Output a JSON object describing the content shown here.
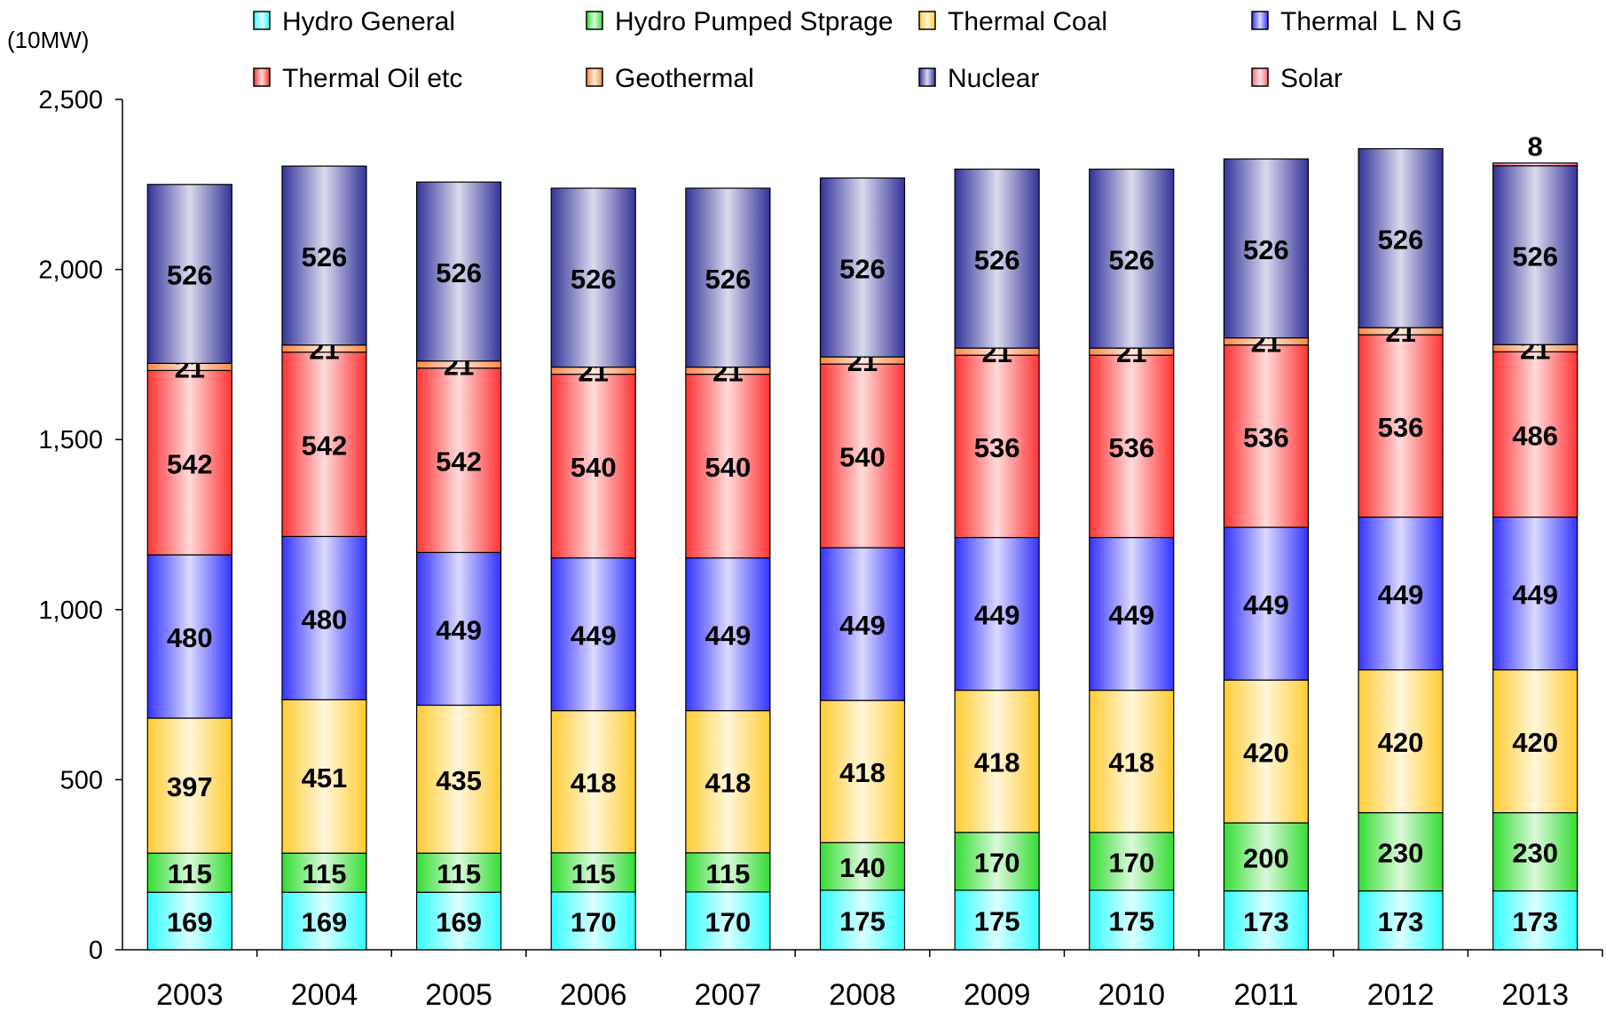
{
  "chart_data": {
    "type": "bar",
    "stacked": true,
    "unit_label": "(10MW)",
    "categories": [
      "2003",
      "2004",
      "2005",
      "2006",
      "2007",
      "2008",
      "2009",
      "2010",
      "2011",
      "2012",
      "2013"
    ],
    "ylim": [
      0,
      2500
    ],
    "yticks": [
      "0",
      "500",
      "1,000",
      "1,500",
      "2,000",
      "2,500"
    ],
    "ytick_values": [
      0,
      500,
      1000,
      1500,
      2000,
      2500
    ],
    "grid": false,
    "legend_position": "top",
    "series": [
      {
        "name": "Hydro General",
        "color": "#33ffff",
        "values": [
          169,
          169,
          169,
          170,
          170,
          175,
          175,
          175,
          173,
          173,
          173
        ],
        "labels": [
          "169",
          "169",
          "169",
          "170",
          "170",
          "175",
          "175",
          "175",
          "173",
          "173",
          "173"
        ]
      },
      {
        "name": "Hydro Pumped Stprage",
        "color": "#33dd33",
        "values": [
          115,
          115,
          115,
          115,
          115,
          140,
          170,
          170,
          200,
          230,
          230
        ],
        "labels": [
          "115",
          "115",
          "115",
          "115",
          "115",
          "140",
          "170",
          "170",
          "200",
          "230",
          "230"
        ]
      },
      {
        "name": "Thermal Coal",
        "color": "#ffcc33",
        "values": [
          397,
          451,
          435,
          418,
          418,
          418,
          418,
          418,
          420,
          420,
          420
        ],
        "labels": [
          "397",
          "451",
          "435",
          "418",
          "418",
          "418",
          "418",
          "418",
          "420",
          "420",
          "420"
        ]
      },
      {
        "name": "Thermal ＬＮＧ",
        "color": "#3333ff",
        "values": [
          480,
          480,
          449,
          449,
          449,
          449,
          449,
          449,
          449,
          449,
          449
        ],
        "labels": [
          "480",
          "480",
          "449",
          "449",
          "449",
          "449",
          "449",
          "449",
          "449",
          "449",
          "449"
        ]
      },
      {
        "name": "Thermal Oil etc",
        "color": "#ff3333",
        "values": [
          542,
          542,
          542,
          540,
          540,
          540,
          536,
          536,
          536,
          536,
          486
        ],
        "labels": [
          "542",
          "542",
          "542",
          "540",
          "540",
          "540",
          "536",
          "536",
          "536",
          "536",
          "486"
        ]
      },
      {
        "name": "Geothermal",
        "color": "#ff8844",
        "values": [
          21,
          21,
          21,
          21,
          21,
          21,
          21,
          21,
          21,
          21,
          21
        ],
        "labels": [
          "21",
          "21",
          "21",
          "21",
          "21",
          "21",
          "21",
          "21",
          "21",
          "21",
          "21"
        ]
      },
      {
        "name": "Nuclear",
        "color": "#333399",
        "values": [
          526,
          526,
          526,
          526,
          526,
          526,
          526,
          526,
          526,
          526,
          526
        ],
        "labels": [
          "526",
          "526",
          "526",
          "526",
          "526",
          "526",
          "526",
          "526",
          "526",
          "526",
          "526"
        ]
      },
      {
        "name": "Solar",
        "color": "#ff6677",
        "values": [
          0,
          0,
          0,
          0,
          0,
          0,
          0,
          0,
          0,
          0,
          8
        ],
        "labels": [
          "",
          "",
          "",
          "",
          "",
          "",
          "",
          "",
          "",
          "",
          "8"
        ]
      }
    ]
  }
}
